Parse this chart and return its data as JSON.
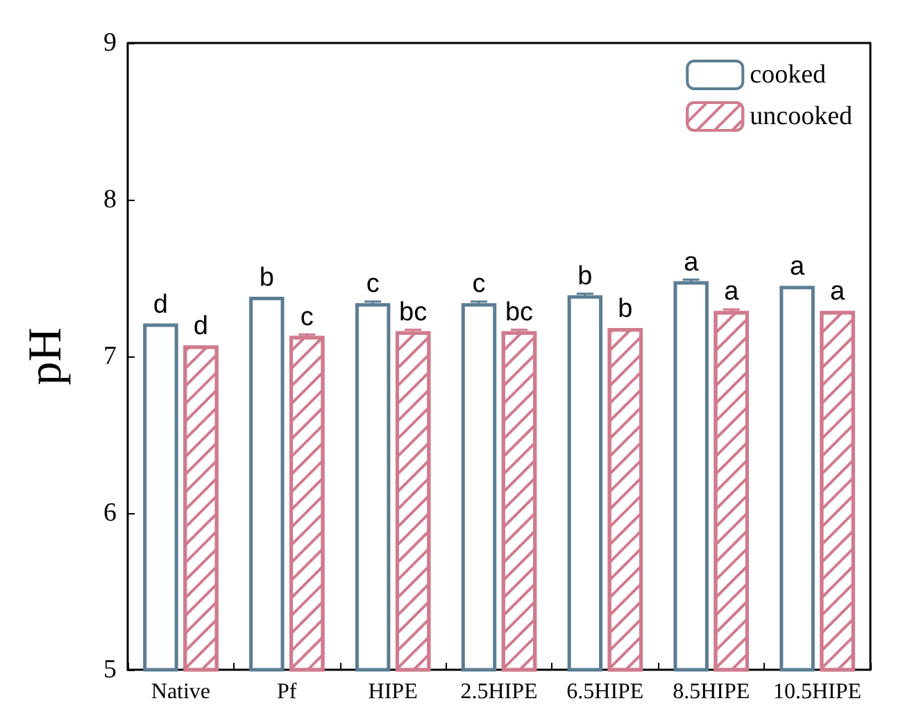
{
  "chart_data": {
    "type": "bar",
    "ylabel": "pH",
    "categories": [
      "Native",
      "Pf",
      "HIPE",
      "2.5HIPE",
      "6.5HIPE",
      "8.5HIPE",
      "10.5HIPE"
    ],
    "series": [
      {
        "name": "cooked",
        "color": "#5a7d94",
        "values": [
          7.21,
          7.38,
          7.34,
          7.34,
          7.39,
          7.48,
          7.45
        ],
        "errors": [
          null,
          null,
          0.01,
          0.01,
          0.01,
          0.01,
          null
        ],
        "value_labels": [
          "d",
          "b",
          "c",
          "c",
          "b",
          "a",
          "a"
        ]
      },
      {
        "name": "uncooked",
        "color": "#d07a8e",
        "values": [
          7.07,
          7.13,
          7.16,
          7.16,
          7.18,
          7.29,
          7.29
        ],
        "errors": [
          null,
          0.01,
          0.01,
          0.01,
          null,
          0.01,
          null
        ],
        "value_labels": [
          "d",
          "c",
          "bc",
          "bc",
          "b",
          "a",
          "a"
        ]
      }
    ],
    "ylim": [
      5,
      9
    ],
    "yticks": [
      5,
      6,
      7,
      8,
      9
    ],
    "grid": false,
    "legend": "top right"
  }
}
